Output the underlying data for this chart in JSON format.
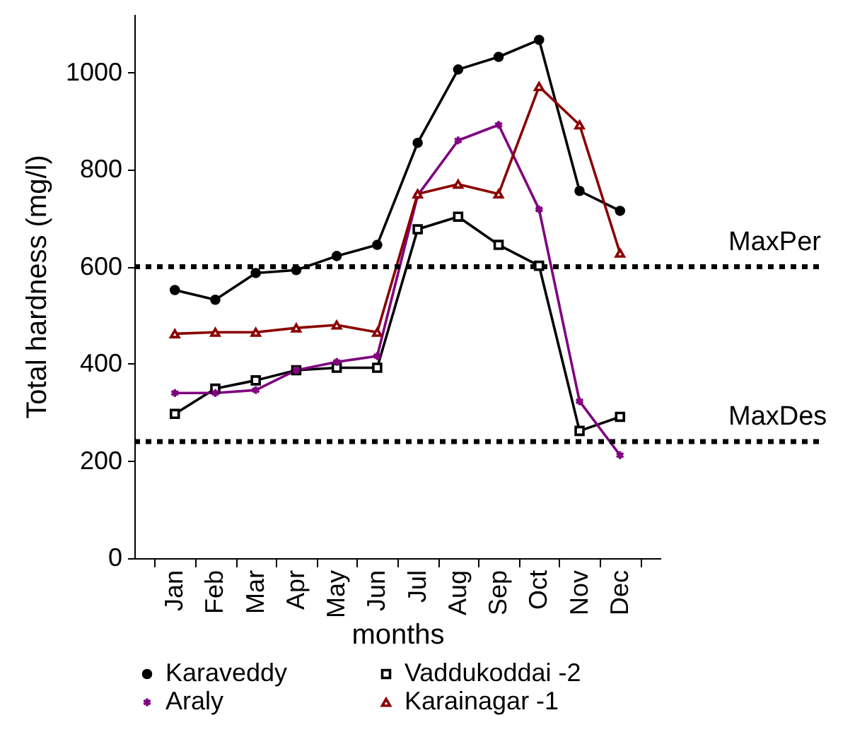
{
  "chart_data": {
    "type": "line",
    "xlabel": "months",
    "ylabel": "Total hardness (mg/l)",
    "categories": [
      "Jan",
      "Feb",
      "Mar",
      "Apr",
      "May",
      "Jun",
      "Jul",
      "Aug",
      "Sep",
      "Oct",
      "Nov",
      "Dec"
    ],
    "series": [
      {
        "name": "Karaveddy",
        "color": "#000000",
        "marker": "circle",
        "values": [
          552,
          532,
          587,
          593,
          622,
          645,
          855,
          1006,
          1032,
          1067,
          756,
          715
        ]
      },
      {
        "name": "Vaddukoddai -2",
        "color": "#000000",
        "marker": "square",
        "values": [
          297,
          349,
          366,
          387,
          392,
          392,
          677,
          703,
          645,
          602,
          262,
          291
        ]
      },
      {
        "name": "Araly",
        "color": "#800080",
        "marker": "cross",
        "values": [
          340,
          340,
          346,
          387,
          404,
          416,
          747,
          860,
          892,
          718,
          323,
          212
        ]
      },
      {
        "name": "Karainagar -1",
        "color": "#8b0000",
        "marker": "triangle",
        "values": [
          462,
          465,
          465,
          474,
          480,
          465,
          750,
          770,
          750,
          971,
          892,
          628
        ]
      }
    ],
    "ylim": [
      0,
      1120
    ],
    "yticks": [
      0,
      200,
      400,
      600,
      800,
      1000
    ],
    "ref_lines": [
      {
        "axis": "y",
        "value": 600,
        "label": "MaxPer",
        "line_style": "dotted"
      },
      {
        "axis": "y",
        "value": 240,
        "label": "MaxDes",
        "line_style": "dotted"
      }
    ],
    "grid": false,
    "legend": "bottom"
  }
}
